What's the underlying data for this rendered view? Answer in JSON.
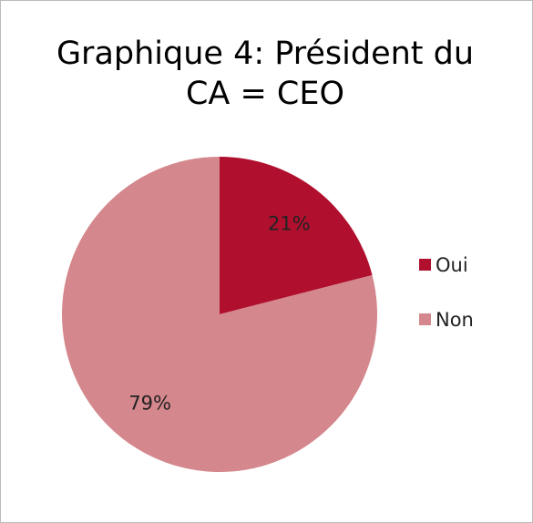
{
  "chart_data": {
    "type": "pie",
    "title": "Graphique 4: Président du CA = CEO",
    "categories": [
      "Oui",
      "Non"
    ],
    "values": [
      21,
      79
    ],
    "value_labels": [
      "21%",
      "79%"
    ],
    "colors": [
      "#b0102e",
      "#d4878c"
    ],
    "legend": "right"
  }
}
